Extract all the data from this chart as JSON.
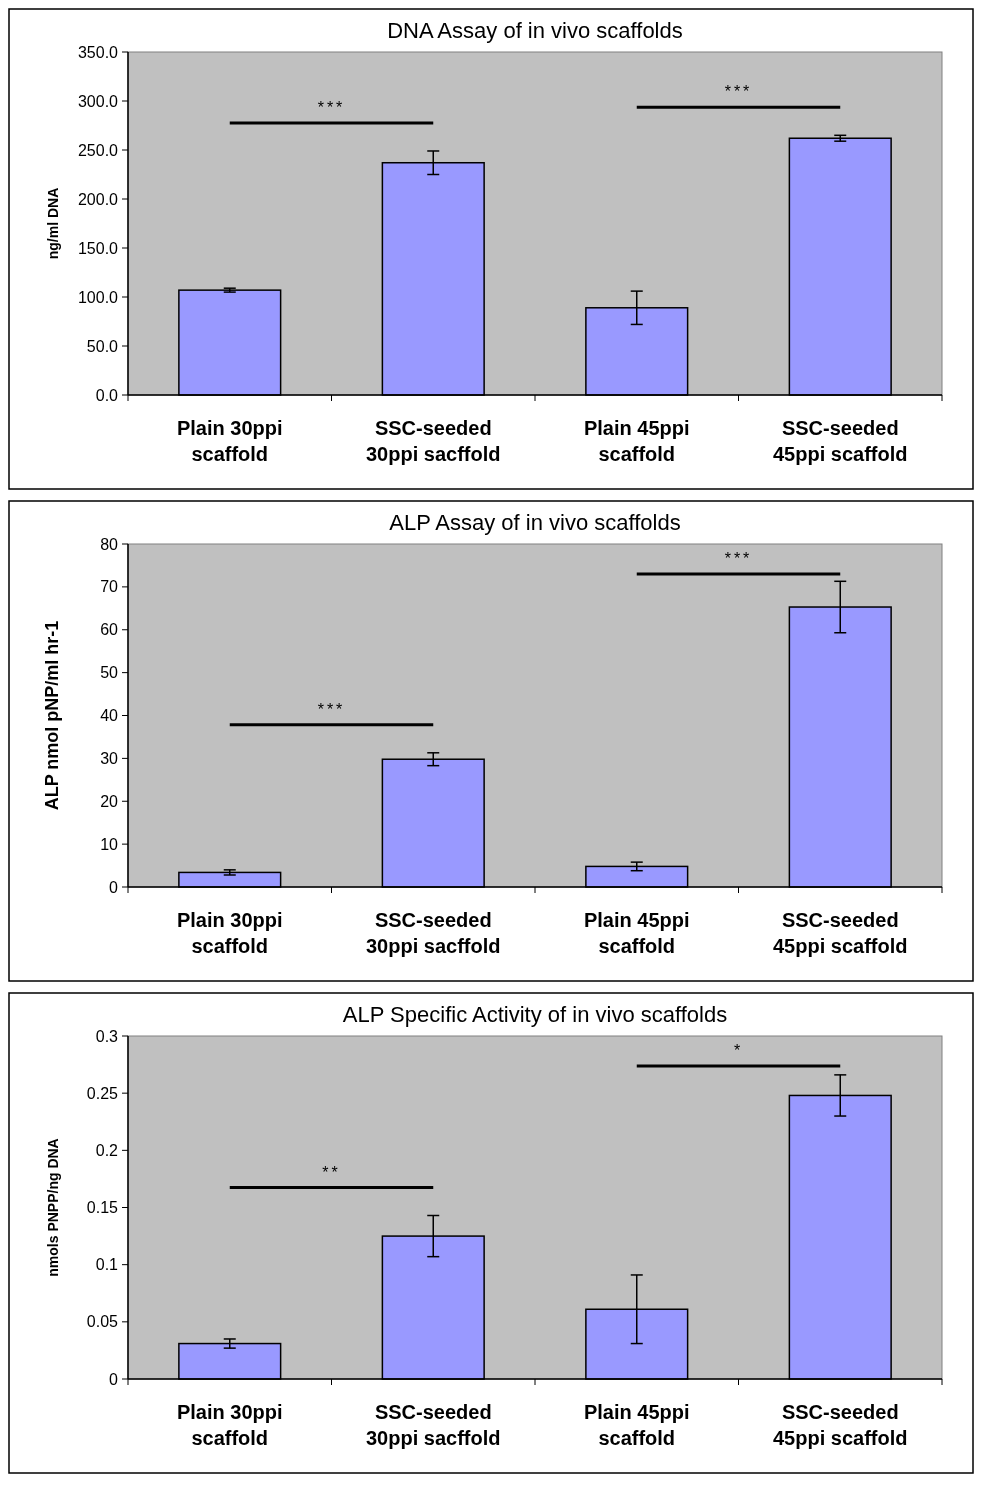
{
  "chart_data": [
    {
      "type": "bar",
      "title": "DNA Assay of in vivo scaffolds",
      "ylabel": "ng/ml DNA",
      "categories": [
        "Plain 30ppi\nscaffold",
        "SSC-seeded\n30ppi sacffold",
        "Plain 45ppi\nscaffold",
        "SSC-seeded\n45ppi scaffold"
      ],
      "values": [
        107,
        237,
        89,
        262
      ],
      "errors": [
        2,
        12,
        17,
        3
      ],
      "color": "#9999ff",
      "ylim": [
        0,
        350
      ],
      "yticks": [
        {
          "value": 0,
          "label": "0.0"
        },
        {
          "value": 50,
          "label": "50.0"
        },
        {
          "value": 100,
          "label": "100.0"
        },
        {
          "value": 150,
          "label": "150.0"
        },
        {
          "value": 200,
          "label": "200.0"
        },
        {
          "value": 250,
          "label": "250.0"
        },
        {
          "value": 300,
          "label": "300.0"
        },
        {
          "value": 350,
          "label": "350.0"
        }
      ],
      "grid": false,
      "annotations": [
        "***",
        "***"
      ]
    },
    {
      "type": "bar",
      "title": "ALP Assay of in vivo scaffolds",
      "ylabel": "ALP nmol pNP/ml hr-1",
      "categories": [
        "Plain 30ppi\nscaffold",
        "SSC-seeded\n30ppi sacffold",
        "Plain 45ppi\nscaffold",
        "SSC-seeded\n45ppi scaffold"
      ],
      "values": [
        3.4,
        29.8,
        4.8,
        65.3
      ],
      "errors": [
        0.6,
        1.5,
        1,
        6
      ],
      "color": "#9999ff",
      "ylim": [
        0,
        80
      ],
      "yticks": [
        0,
        10,
        20,
        30,
        40,
        50,
        60,
        70,
        80
      ],
      "grid": false,
      "annotations": [
        "***",
        "***"
      ]
    },
    {
      "type": "bar",
      "title": "ALP Specific Activity of in vivo scaffolds",
      "ylabel": "nmols PNPP/ng DNA",
      "categories": [
        "Plain 30ppi\nscaffold",
        "SSC-seeded\n30ppi sacffold",
        "Plain 45ppi\nscaffold",
        "SSC-seeded\n45ppi scaffold"
      ],
      "values": [
        0.031,
        0.125,
        0.061,
        0.248
      ],
      "errors": [
        0.004,
        0.018,
        0.03,
        0.018
      ],
      "color": "#9999ff",
      "ylim": [
        0,
        0.3
      ],
      "yticks": [
        0,
        0.05,
        0.1,
        0.15,
        0.2,
        0.25,
        0.3
      ],
      "grid": false,
      "annotations": [
        "**",
        "*"
      ]
    }
  ]
}
